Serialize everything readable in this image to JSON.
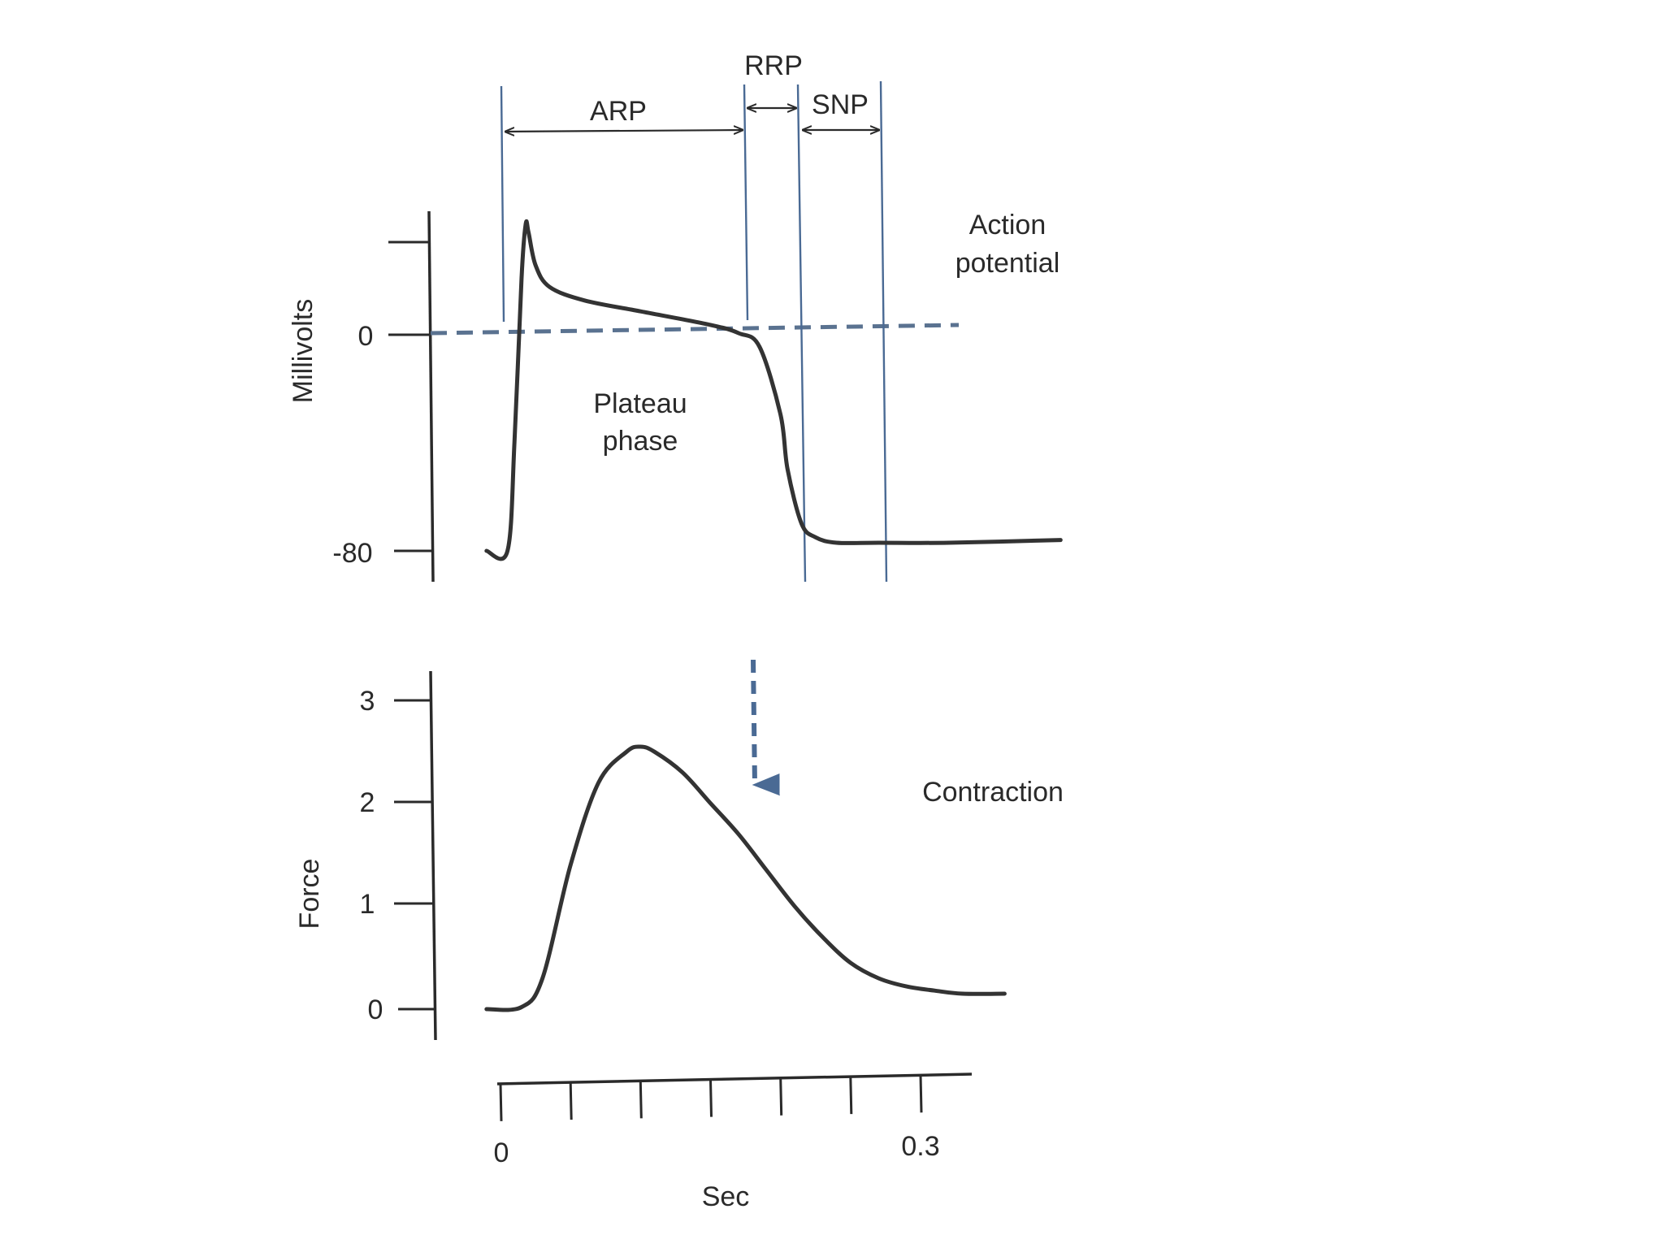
{
  "chart_data": [
    {
      "type": "line",
      "name": "action-potential",
      "title": "",
      "ylabel": "Millivolts",
      "yticks": [
        0,
        -80
      ],
      "ylim": [
        -80,
        40
      ],
      "series": [
        {
          "name": "",
          "x": [
            -0.01,
            0.005,
            0.01,
            0.015,
            0.018,
            0.02,
            0.025,
            0.035,
            0.06,
            0.1,
            0.15,
            0.17,
            0.185,
            0.2,
            0.205,
            0.215,
            0.225,
            0.24,
            0.27,
            0.32,
            0.4
          ],
          "values": [
            -80,
            -80,
            -40,
            20,
            40,
            37,
            25,
            17,
            12,
            8,
            3,
            0,
            -5,
            -30,
            -50,
            -70,
            -75,
            -77,
            -77,
            -77,
            -76
          ]
        }
      ],
      "zero_line": "dashed",
      "annotations": {
        "plateau": [
          "Plateau",
          "phase"
        ],
        "series_label": [
          "Action",
          "potential"
        ]
      },
      "refractory_periods": [
        {
          "label": "ARP",
          "start": 0.003,
          "end": 0.177
        },
        {
          "label": "RRP",
          "start": 0.177,
          "end": 0.216
        },
        {
          "label": "SNP",
          "start": 0.216,
          "end": 0.275
        }
      ]
    },
    {
      "type": "line",
      "name": "contraction",
      "title": "",
      "ylabel": "Force",
      "yticks": [
        0,
        1,
        2,
        3
      ],
      "ylim": [
        0,
        3
      ],
      "series": [
        {
          "name": "",
          "x": [
            -0.01,
            0.015,
            0.03,
            0.05,
            0.07,
            0.09,
            0.1,
            0.11,
            0.13,
            0.15,
            0.17,
            0.19,
            0.21,
            0.23,
            0.25,
            0.27,
            0.29,
            0.31,
            0.33,
            0.36
          ],
          "values": [
            0,
            0.02,
            0.3,
            1.4,
            2.2,
            2.5,
            2.55,
            2.5,
            2.3,
            2.0,
            1.7,
            1.35,
            1.0,
            0.7,
            0.45,
            0.3,
            0.22,
            0.18,
            0.15,
            0.15
          ]
        }
      ],
      "annotations": {
        "series_label": "Contraction"
      },
      "onset_arrow_x": 0.183
    }
  ],
  "time_axis": {
    "xlabel": "Sec",
    "ticks": [
      0,
      0.05,
      0.1,
      0.15,
      0.2,
      0.25,
      0.3
    ],
    "tick_labels": {
      "start": "0",
      "end": "0.3"
    },
    "xlim": [
      0,
      0.3
    ]
  },
  "ap_tick_labels": {
    "zero": "0",
    "neg80": "-80"
  },
  "force_tick_labels": [
    "0",
    "1",
    "2",
    "3"
  ]
}
